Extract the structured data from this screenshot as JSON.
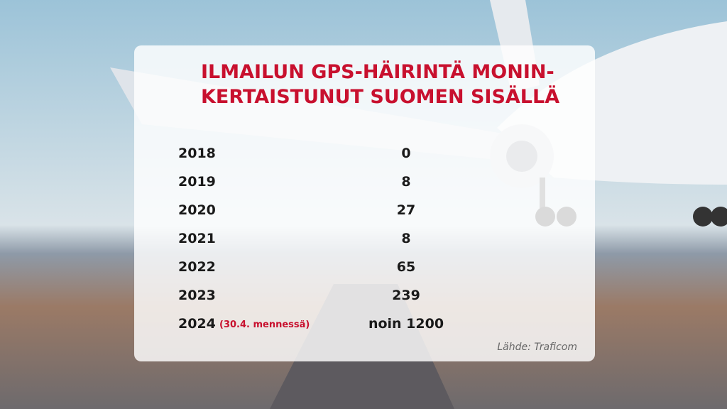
{
  "title": {
    "lines": [
      "ILMAILUN GPS-HÄIRINTÄ MONIN-",
      "KERTAISTUNUT SUOMEN SISÄLLÄ"
    ]
  },
  "table": {
    "rows": [
      {
        "year": "2018",
        "value": 0
      },
      {
        "year": "2019",
        "value": 8
      },
      {
        "year": "2020",
        "value": 27
      },
      {
        "year": "2021",
        "value": 8
      },
      {
        "year": "2022",
        "value": 65
      },
      {
        "year": "2023",
        "value": 239
      },
      {
        "year": "2024",
        "note": "(30.4. mennessä)",
        "value": "noin 1200"
      }
    ]
  },
  "source": "Lähde: Traficom"
}
